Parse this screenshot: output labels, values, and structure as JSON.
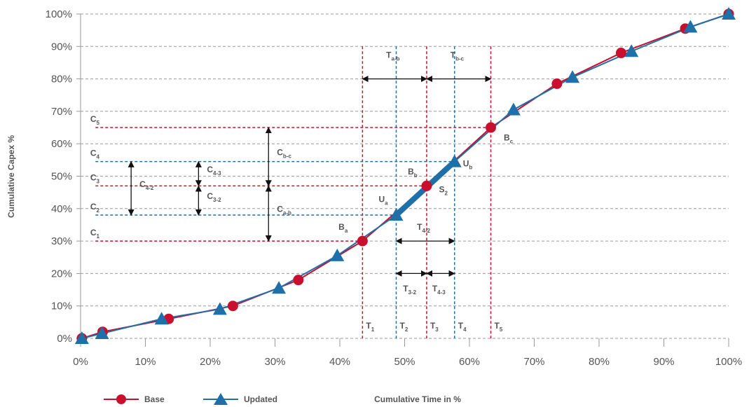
{
  "chart_data": {
    "type": "line",
    "xlabel": "Cumulative Time in %",
    "ylabel": "Cumulative Capex %",
    "xlim": [
      0,
      100
    ],
    "ylim": [
      0,
      100
    ],
    "x_ticks": [
      "0%",
      "10%",
      "20%",
      "30%",
      "40%",
      "50%",
      "60%",
      "70%",
      "80%",
      "90%",
      "100%"
    ],
    "y_ticks": [
      "0%",
      "10%",
      "20%",
      "30%",
      "40%",
      "50%",
      "60%",
      "70%",
      "80%",
      "90%",
      "100%"
    ],
    "grid": "horizontal dashed",
    "legend_position": "bottom-left",
    "series": [
      {
        "name": "Base",
        "marker": "circle",
        "color": "#c8102e",
        "points": [
          [
            0.2,
            0
          ],
          [
            3.4,
            2
          ],
          [
            13.6,
            6
          ],
          [
            23.5,
            10
          ],
          [
            33.6,
            18
          ],
          [
            43.5,
            30
          ],
          [
            53.4,
            47
          ],
          [
            63.3,
            65
          ],
          [
            73.5,
            78.5
          ],
          [
            83.4,
            88
          ],
          [
            93.3,
            95.5
          ],
          [
            100,
            100
          ]
        ]
      },
      {
        "name": "Updated",
        "marker": "triangle",
        "color": "#1f6fa8",
        "points": [
          [
            0.2,
            0
          ],
          [
            3.3,
            1.5
          ],
          [
            12.5,
            6
          ],
          [
            21.5,
            9
          ],
          [
            30.6,
            15.5
          ],
          [
            39.6,
            25.5
          ],
          [
            48.7,
            38
          ],
          [
            57.7,
            54.5
          ],
          [
            66.8,
            70.5
          ],
          [
            75.9,
            80.5
          ],
          [
            85,
            88.5
          ],
          [
            94.1,
            96
          ],
          [
            100,
            100
          ]
        ]
      }
    ],
    "highlight_segment": {
      "color": "#1f6fa8",
      "from": [
        48.7,
        38
      ],
      "to": [
        57.7,
        54.5
      ]
    },
    "vlines": [
      {
        "label": "T",
        "sub": "1",
        "x": 43.5,
        "color": "#c8102e"
      },
      {
        "label": "T",
        "sub": "2",
        "x": 48.7,
        "color": "#1f6fa8"
      },
      {
        "label": "T",
        "sub": "3",
        "x": 53.4,
        "color": "#c8102e"
      },
      {
        "label": "T",
        "sub": "4",
        "x": 57.7,
        "color": "#1f6fa8"
      },
      {
        "label": "T",
        "sub": "5",
        "x": 63.3,
        "color": "#c8102e"
      }
    ],
    "hlines": [
      {
        "label": "C",
        "sub": "1",
        "y": 30,
        "x_end": 43.5,
        "color": "#c8102e"
      },
      {
        "label": "C",
        "sub": "2",
        "y": 38,
        "x_end": 48.7,
        "color": "#1f6fa8"
      },
      {
        "label": "C",
        "sub": "3",
        "y": 47,
        "x_end": 53.4,
        "color": "#c8102e"
      },
      {
        "label": "C",
        "sub": "4",
        "y": 54.5,
        "x_end": 57.7,
        "color": "#1f6fa8"
      },
      {
        "label": "C",
        "sub": "5",
        "y": 65,
        "x_end": 63.3,
        "color": "#c8102e"
      }
    ],
    "point_labels": [
      {
        "label": "B",
        "sub": "a",
        "x": 39.8,
        "y": 33.5
      },
      {
        "label": "U",
        "sub": "a",
        "x": 46.0,
        "y": 42.0
      },
      {
        "label": "B",
        "sub": "b",
        "x": 50.5,
        "y": 50.5
      },
      {
        "label": "S",
        "sub": "2",
        "x": 55.3,
        "y": 45.0
      },
      {
        "label": "U",
        "sub": "b",
        "x": 59.0,
        "y": 53.0
      },
      {
        "label": "B",
        "sub": "c",
        "x": 65.3,
        "y": 61.0
      }
    ],
    "v_arrows": [
      {
        "label": "C",
        "sub": "4-2",
        "x": 7.8,
        "y_from": 38,
        "y_to": 54.5
      },
      {
        "label": "C",
        "sub": "4-3",
        "x": 18.2,
        "y_from": 47,
        "y_to": 54.5
      },
      {
        "label": "C",
        "sub": "3-2",
        "x": 18.2,
        "y_from": 38,
        "y_to": 47
      },
      {
        "label": "C",
        "sub": "b-c",
        "x": 29.0,
        "y_from": 47,
        "y_to": 65
      },
      {
        "label": "C",
        "sub": "a-b",
        "x": 29.0,
        "y_from": 30,
        "y_to": 47
      }
    ],
    "h_arrows": [
      {
        "label": "T",
        "sub": "a-b",
        "y": 80,
        "x_from": 43.5,
        "x_to": 53.4,
        "label_y": 86.5
      },
      {
        "label": "T",
        "sub": "b-c",
        "y": 80,
        "x_from": 53.4,
        "x_to": 63.3,
        "label_y": 86.5
      },
      {
        "label": "T",
        "sub": "4-2",
        "y": 30,
        "x_from": 48.7,
        "x_to": 57.7,
        "label_y": 33.5
      },
      {
        "label": "T",
        "sub": "3-2",
        "y": 20,
        "x_from": 48.7,
        "x_to": 53.4,
        "label_y": 14.5
      },
      {
        "label": "T",
        "sub": "4-3",
        "y": 20,
        "x_from": 53.4,
        "x_to": 57.7,
        "label_y": 14.5
      }
    ]
  },
  "legend": {
    "base_label": "Base",
    "updated_label": "Updated"
  }
}
